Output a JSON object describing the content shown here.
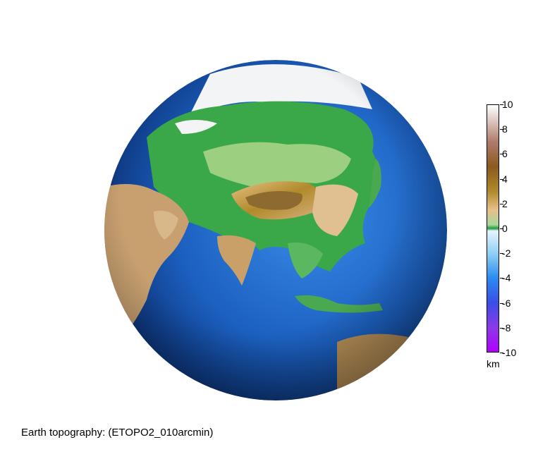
{
  "caption": "Earth topography: (ETOPO2_010arcmin)",
  "colorbar": {
    "unit": "km",
    "ticks": [
      "10",
      "8",
      "6",
      "4",
      "2",
      "0",
      "-2",
      "-4",
      "-6",
      "-8",
      "-10"
    ],
    "range": [
      -10,
      10
    ],
    "stops": [
      {
        "value": 10,
        "color": "#ffffff"
      },
      {
        "value": 7,
        "color": "#b07a6a"
      },
      {
        "value": 5,
        "color": "#8c5a1e"
      },
      {
        "value": 3,
        "color": "#b08a2a"
      },
      {
        "value": 1.5,
        "color": "#e8c088"
      },
      {
        "value": 0.3,
        "color": "#a8d89c"
      },
      {
        "value": 0,
        "color": "#1f9e3a"
      },
      {
        "value": -0.2,
        "color": "#e6f4ff"
      },
      {
        "value": -2,
        "color": "#8fd2f5"
      },
      {
        "value": -4,
        "color": "#2a8cf0"
      },
      {
        "value": -6,
        "color": "#3a4ee8"
      },
      {
        "value": -8,
        "color": "#8a3ae8"
      },
      {
        "value": -10,
        "color": "#b000ff"
      }
    ]
  },
  "globe": {
    "ocean_colors": [
      "#1c6fd0",
      "#0d4fa8",
      "#0a3a80"
    ],
    "land_colors": [
      "#3aa848",
      "#8cc870",
      "#d8b080",
      "#8c6a30",
      "#f4f4f4"
    ]
  }
}
